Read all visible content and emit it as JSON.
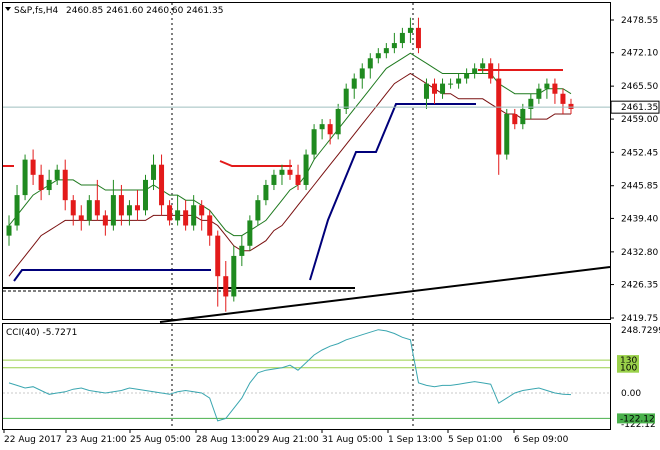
{
  "colors": {
    "up": "#1f8a1f",
    "down": "#e31a1a",
    "ma_green": "#1f7a1f",
    "ma_maroon": "#7a1010",
    "navy": "#00007a",
    "black": "#000000",
    "red_level": "#e31a1a",
    "cci": "#3aa6b0",
    "cci_level": "#9ad14a",
    "cci_level_low": "#49b04b",
    "price_line": "#9fbfbf"
  },
  "header": {
    "label": "S&P,fs,H4",
    "values": "2460.85 2461.60 2460.60 2461.35"
  },
  "price_axis": {
    "ticks": [
      "2478.55",
      "2472.10",
      "2465.50",
      "2459.00",
      "2452.45",
      "2445.85",
      "2439.40",
      "2432.80",
      "2426.35",
      "2419.75"
    ],
    "current": "2461.35"
  },
  "cci": {
    "title": "CCI(40) -5.7271",
    "ticks": [
      "248.7299",
      "0.00",
      "-122.12"
    ],
    "levels": [
      "130",
      "100"
    ],
    "low_level": "-122.12"
  },
  "time_axis": {
    "labels": [
      "22 Aug 2017",
      "23 Aug 21:00",
      "25 Aug 05:00",
      "28 Aug 13:00",
      "29 Aug 21:00",
      "31 Aug 05:00",
      "1 Sep 13:00",
      "5 Sep 01:00",
      "6 Sep 09:00"
    ]
  },
  "chart_data": {
    "type": "candlestick",
    "symbol": "S&P,fs,H4",
    "ylim": [
      2419.75,
      2478.55
    ],
    "candles": [
      {
        "o": 2436,
        "h": 2440,
        "l": 2434,
        "c": 2438
      },
      {
        "o": 2438,
        "h": 2446,
        "l": 2437,
        "c": 2444
      },
      {
        "o": 2444,
        "h": 2452,
        "l": 2443,
        "c": 2451
      },
      {
        "o": 2451,
        "h": 2453,
        "l": 2446,
        "c": 2448
      },
      {
        "o": 2448,
        "h": 2450,
        "l": 2443,
        "c": 2445
      },
      {
        "o": 2445,
        "h": 2449,
        "l": 2444,
        "c": 2447
      },
      {
        "o": 2447,
        "h": 2450,
        "l": 2446,
        "c": 2449
      },
      {
        "o": 2449,
        "h": 2451,
        "l": 2441,
        "c": 2443
      },
      {
        "o": 2443,
        "h": 2444,
        "l": 2438,
        "c": 2440
      },
      {
        "o": 2440,
        "h": 2442,
        "l": 2437,
        "c": 2439
      },
      {
        "o": 2439,
        "h": 2444,
        "l": 2438,
        "c": 2443
      },
      {
        "o": 2443,
        "h": 2447,
        "l": 2439,
        "c": 2440
      },
      {
        "o": 2440,
        "h": 2441,
        "l": 2436,
        "c": 2438
      },
      {
        "o": 2438,
        "h": 2447,
        "l": 2437,
        "c": 2444
      },
      {
        "o": 2444,
        "h": 2446,
        "l": 2438,
        "c": 2440
      },
      {
        "o": 2440,
        "h": 2443,
        "l": 2438,
        "c": 2442
      },
      {
        "o": 2442,
        "h": 2445,
        "l": 2439,
        "c": 2441
      },
      {
        "o": 2441,
        "h": 2448,
        "l": 2440,
        "c": 2447
      },
      {
        "o": 2447,
        "h": 2452,
        "l": 2445,
        "c": 2450
      },
      {
        "o": 2450,
        "h": 2452,
        "l": 2440,
        "c": 2442
      },
      {
        "o": 2442,
        "h": 2443,
        "l": 2438,
        "c": 2439
      },
      {
        "o": 2439,
        "h": 2444,
        "l": 2438,
        "c": 2441
      },
      {
        "o": 2441,
        "h": 2443,
        "l": 2437,
        "c": 2438
      },
      {
        "o": 2438,
        "h": 2444,
        "l": 2437,
        "c": 2442
      },
      {
        "o": 2442,
        "h": 2443,
        "l": 2437,
        "c": 2440
      },
      {
        "o": 2440,
        "h": 2441,
        "l": 2434,
        "c": 2436
      },
      {
        "o": 2436,
        "h": 2437,
        "l": 2422,
        "c": 2428
      },
      {
        "o": 2428,
        "h": 2431,
        "l": 2421,
        "c": 2424
      },
      {
        "o": 2424,
        "h": 2434,
        "l": 2423,
        "c": 2432
      },
      {
        "o": 2432,
        "h": 2436,
        "l": 2430,
        "c": 2434
      },
      {
        "o": 2434,
        "h": 2440,
        "l": 2433,
        "c": 2439
      },
      {
        "o": 2439,
        "h": 2444,
        "l": 2438,
        "c": 2443
      },
      {
        "o": 2443,
        "h": 2447,
        "l": 2442,
        "c": 2446
      },
      {
        "o": 2446,
        "h": 2449,
        "l": 2445,
        "c": 2448
      },
      {
        "o": 2448,
        "h": 2450,
        "l": 2446,
        "c": 2449
      },
      {
        "o": 2449,
        "h": 2451,
        "l": 2447,
        "c": 2448
      },
      {
        "o": 2448,
        "h": 2450,
        "l": 2445,
        "c": 2446
      },
      {
        "o": 2446,
        "h": 2453,
        "l": 2445,
        "c": 2452
      },
      {
        "o": 2452,
        "h": 2458,
        "l": 2451,
        "c": 2457
      },
      {
        "o": 2457,
        "h": 2459,
        "l": 2455,
        "c": 2458
      },
      {
        "o": 2458,
        "h": 2459,
        "l": 2454,
        "c": 2456
      },
      {
        "o": 2456,
        "h": 2462,
        "l": 2455,
        "c": 2461
      },
      {
        "o": 2461,
        "h": 2466,
        "l": 2460,
        "c": 2465
      },
      {
        "o": 2465,
        "h": 2468,
        "l": 2463,
        "c": 2467
      },
      {
        "o": 2467,
        "h": 2470,
        "l": 2465,
        "c": 2469
      },
      {
        "o": 2469,
        "h": 2472,
        "l": 2467,
        "c": 2471
      },
      {
        "o": 2471,
        "h": 2473,
        "l": 2470,
        "c": 2472
      },
      {
        "o": 2472,
        "h": 2474,
        "l": 2471,
        "c": 2473
      },
      {
        "o": 2473,
        "h": 2476,
        "l": 2472,
        "c": 2474
      },
      {
        "o": 2474,
        "h": 2477,
        "l": 2473,
        "c": 2476
      },
      {
        "o": 2476,
        "h": 2479,
        "l": 2474,
        "c": 2477
      },
      {
        "o": 2477,
        "h": 2479,
        "l": 2472,
        "c": 2473
      },
      {
        "o": 2463,
        "h": 2467,
        "l": 2461,
        "c": 2466
      },
      {
        "o": 2466,
        "h": 2467,
        "l": 2462,
        "c": 2464
      },
      {
        "o": 2464,
        "h": 2467,
        "l": 2463,
        "c": 2466
      },
      {
        "o": 2466,
        "h": 2467,
        "l": 2465,
        "c": 2466
      },
      {
        "o": 2466,
        "h": 2468,
        "l": 2465,
        "c": 2467
      },
      {
        "o": 2467,
        "h": 2469,
        "l": 2466,
        "c": 2468
      },
      {
        "o": 2468,
        "h": 2470,
        "l": 2467,
        "c": 2469
      },
      {
        "o": 2469,
        "h": 2471,
        "l": 2468,
        "c": 2470
      },
      {
        "o": 2470,
        "h": 2471,
        "l": 2466,
        "c": 2467
      },
      {
        "o": 2467,
        "h": 2470,
        "l": 2448,
        "c": 2452
      },
      {
        "o": 2452,
        "h": 2461,
        "l": 2451,
        "c": 2460
      },
      {
        "o": 2460,
        "h": 2461,
        "l": 2457,
        "c": 2458
      },
      {
        "o": 2458,
        "h": 2462,
        "l": 2457,
        "c": 2461
      },
      {
        "o": 2461,
        "h": 2464,
        "l": 2459,
        "c": 2463
      },
      {
        "o": 2463,
        "h": 2466,
        "l": 2462,
        "c": 2465
      },
      {
        "o": 2465,
        "h": 2467,
        "l": 2463,
        "c": 2466
      },
      {
        "o": 2466,
        "h": 2467,
        "l": 2462,
        "c": 2464
      },
      {
        "o": 2464,
        "h": 2465,
        "l": 2460,
        "c": 2462
      },
      {
        "o": 2462,
        "h": 2463,
        "l": 2460,
        "c": 2461
      }
    ],
    "ma_fast": [
      2438,
      2440,
      2442,
      2444,
      2445,
      2446,
      2447,
      2447,
      2447,
      2446,
      2446,
      2446,
      2445,
      2445,
      2445,
      2445,
      2445,
      2445,
      2446,
      2445,
      2444,
      2444,
      2443,
      2443,
      2442,
      2441,
      2439,
      2437,
      2436,
      2436,
      2437,
      2438,
      2439,
      2441,
      2443,
      2445,
      2446,
      2448,
      2451,
      2453,
      2455,
      2457,
      2459,
      2461,
      2463,
      2465,
      2467,
      2469,
      2470,
      2471,
      2472,
      2471,
      2470,
      2469,
      2468,
      2468,
      2468,
      2468,
      2468,
      2468,
      2468,
      2466,
      2465,
      2464,
      2464,
      2464,
      2464,
      2465,
      2465,
      2465,
      2464
    ],
    "ma_slow": [
      2428,
      2430,
      2432,
      2434,
      2436,
      2437,
      2438,
      2439,
      2439,
      2439,
      2439,
      2439,
      2439,
      2439,
      2439,
      2439,
      2439,
      2439,
      2440,
      2440,
      2440,
      2440,
      2440,
      2440,
      2439,
      2439,
      2438,
      2436,
      2434,
      2433,
      2433,
      2434,
      2435,
      2437,
      2438,
      2440,
      2442,
      2444,
      2446,
      2448,
      2450,
      2452,
      2454,
      2456,
      2458,
      2460,
      2462,
      2464,
      2466,
      2467,
      2468,
      2467,
      2466,
      2465,
      2464,
      2464,
      2463,
      2463,
      2463,
      2463,
      2462,
      2461,
      2460,
      2460,
      2459,
      2459,
      2459,
      2459,
      2460,
      2460,
      2460
    ],
    "cci_values": [
      40,
      30,
      20,
      25,
      10,
      -5,
      0,
      5,
      15,
      20,
      10,
      5,
      0,
      5,
      10,
      20,
      15,
      10,
      5,
      0,
      -5,
      5,
      10,
      5,
      0,
      -20,
      -110,
      -100,
      -60,
      -20,
      40,
      80,
      90,
      95,
      100,
      110,
      90,
      120,
      150,
      170,
      185,
      195,
      210,
      220,
      230,
      240,
      250,
      245,
      235,
      220,
      210,
      40,
      30,
      25,
      30,
      30,
      35,
      40,
      45,
      40,
      35,
      -40,
      -20,
      0,
      10,
      15,
      20,
      10,
      0,
      -5,
      -6
    ]
  }
}
